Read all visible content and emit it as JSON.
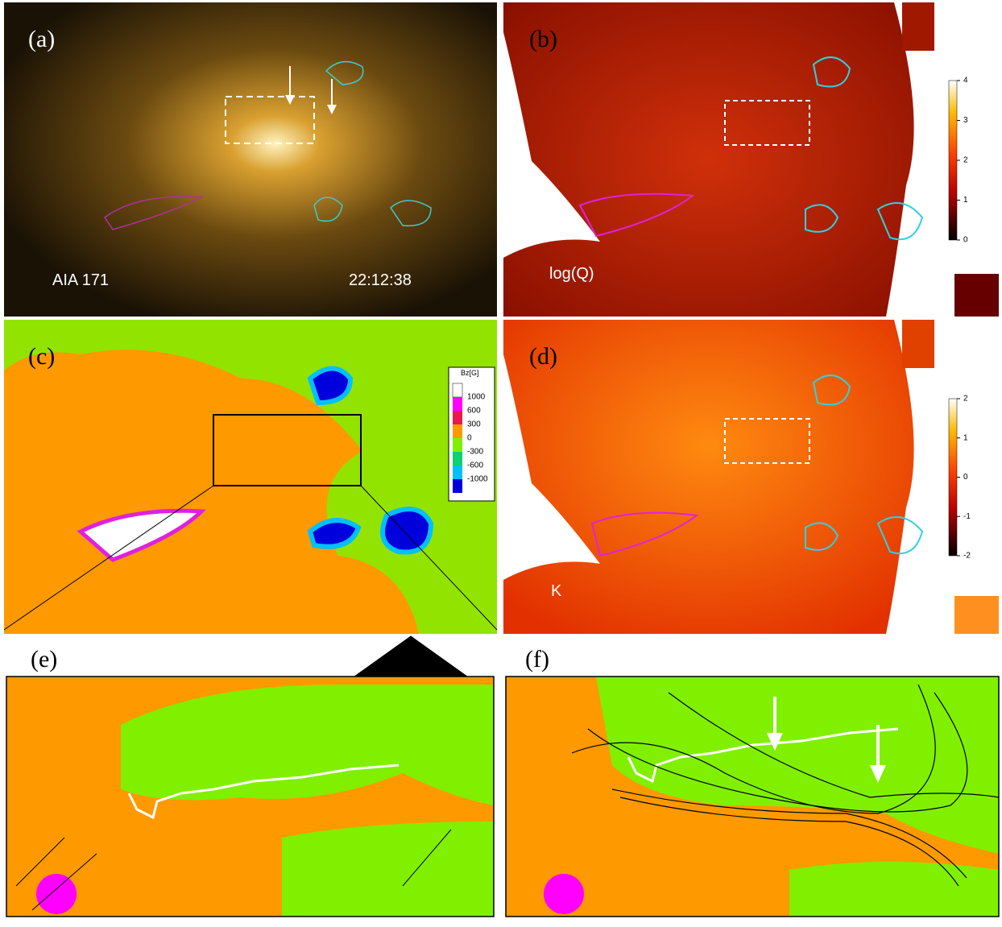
{
  "panel_a": {
    "label": "(a)",
    "instrument": "AIA 171",
    "time": "22:12:38"
  },
  "panel_b": {
    "label": "(b)",
    "quantity": "log(Q)",
    "colorbar_ticks": [
      0,
      1,
      2,
      3,
      4
    ]
  },
  "panel_c": {
    "label": "(c)",
    "legend_title": "Bz[G]",
    "legend_levels": [
      1000,
      600,
      300,
      0,
      -300,
      -600,
      -1000
    ]
  },
  "panel_d": {
    "label": "(d)",
    "quantity": "K",
    "colorbar_ticks": [
      -2,
      -1,
      0,
      1,
      2
    ]
  },
  "panel_e": {
    "label": "(e)"
  },
  "panel_f": {
    "label": "(f)"
  }
}
